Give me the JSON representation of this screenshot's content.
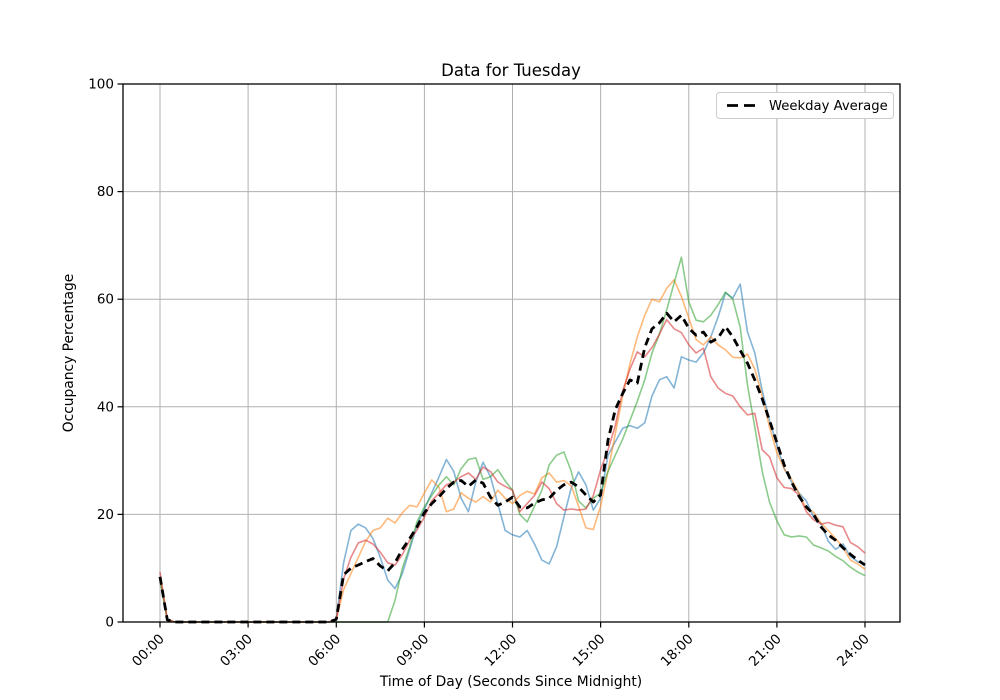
{
  "chart_data": {
    "type": "line",
    "title": "Data for Tuesday",
    "xlabel": "Time of Day (Seconds Since Midnight)",
    "ylabel": "Occupancy Percentage",
    "x_range_seconds": [
      0,
      86400
    ],
    "y_range": [
      0,
      100
    ],
    "grid": "on",
    "grid_color": "#b0b0b0",
    "background_color": "#ffffff",
    "x_tick_seconds": [
      0,
      10800,
      21600,
      32400,
      43200,
      54000,
      64800,
      75600,
      86400
    ],
    "x_tick_labels": [
      "00:00",
      "03:00",
      "06:00",
      "09:00",
      "12:00",
      "15:00",
      "18:00",
      "21:00",
      "24:00"
    ],
    "y_ticks": [
      0,
      20,
      40,
      60,
      80,
      100
    ],
    "x_start_seconds": 0,
    "x_step_seconds": 900,
    "legend": {
      "label": "Weekday Average",
      "position": "upper right"
    },
    "series": [
      {
        "name": "tuesday-sample-blue",
        "color": "#1f77b4",
        "opacity": 0.55,
        "width": 1.6,
        "dash": "",
        "values": [
          8.0,
          0.4,
          0,
          0,
          0,
          0,
          0,
          0,
          0,
          0,
          0,
          0,
          0,
          0,
          0,
          0,
          0,
          0,
          0,
          0,
          0,
          0,
          0,
          0,
          0.5,
          11,
          17,
          18.2,
          17.5,
          15.5,
          12,
          7.8,
          6.2,
          9,
          13.5,
          18,
          21,
          24,
          27,
          30.2,
          28,
          23,
          20.5,
          26,
          29.7,
          27,
          22,
          17,
          16.2,
          15.8,
          17,
          14.5,
          11.5,
          10.8,
          14,
          19.5,
          25,
          27.9,
          25.5,
          20.8,
          23,
          31,
          33.5,
          36,
          36.5,
          36,
          37,
          42,
          45,
          45.6,
          43.5,
          49.3,
          48.7,
          48.3,
          50,
          53,
          56.7,
          61.2,
          60.2,
          62.8,
          53.9,
          50,
          43,
          37.5,
          33,
          28.5,
          26,
          24,
          22.5,
          19.5,
          18.3,
          15,
          13.5,
          14.5,
          12.2,
          11.2,
          10.8
        ]
      },
      {
        "name": "tuesday-sample-orange",
        "color": "#ff7f0e",
        "opacity": 0.55,
        "width": 1.6,
        "dash": "",
        "values": [
          8.2,
          0.4,
          0,
          0,
          0,
          0,
          0,
          0,
          0,
          0,
          0,
          0,
          0,
          0,
          0,
          0,
          0,
          0,
          0,
          0,
          0,
          0,
          0,
          0,
          0.5,
          6,
          9,
          12,
          15,
          17,
          17.5,
          19.3,
          18.4,
          20.3,
          21.7,
          21.4,
          24,
          26.4,
          25,
          20.5,
          21,
          24,
          23,
          22.3,
          23.3,
          22.3,
          24.5,
          23,
          22,
          23.5,
          24.3,
          23.8,
          26.8,
          27.7,
          26,
          26.3,
          25.3,
          21.5,
          17.5,
          17.2,
          21.5,
          28,
          35,
          42,
          48,
          53,
          57,
          60,
          59.5,
          62,
          63.6,
          60.5,
          56.5,
          52.5,
          51.5,
          53,
          51.5,
          50.6,
          49.2,
          49.1,
          49.8,
          47,
          42,
          36.2,
          31.5,
          28.5,
          26.5,
          24,
          21,
          20.4,
          18.4,
          17,
          15.5,
          13.9,
          11.5,
          10.8,
          9.8
        ]
      },
      {
        "name": "tuesday-sample-green",
        "color": "#2ca02c",
        "opacity": 0.55,
        "width": 1.6,
        "dash": "",
        "values": [
          8.0,
          0.3,
          0,
          0,
          0,
          0,
          0,
          0,
          0,
          0,
          0,
          0,
          0,
          0,
          0,
          0,
          0,
          0,
          0,
          0,
          0,
          0,
          0,
          0,
          0,
          0,
          0,
          0,
          0,
          0,
          0,
          0,
          4,
          10,
          14,
          18.6,
          21.4,
          23.5,
          25.5,
          27,
          25.5,
          28.5,
          30.2,
          30.5,
          26.5,
          27,
          28.3,
          26.2,
          24.5,
          20,
          18.6,
          21.5,
          24.5,
          29.2,
          31,
          31.6,
          28,
          22.5,
          21.2,
          23,
          24,
          28,
          31,
          34,
          37.5,
          41,
          45,
          50,
          53.5,
          58,
          63,
          67.8,
          59.5,
          56.1,
          55.8,
          57,
          59,
          61.3,
          60,
          54.8,
          44,
          36.2,
          28,
          22.3,
          18.8,
          16.2,
          15.8,
          16,
          15.8,
          14.3,
          13.8,
          13.2,
          12.2,
          11.4,
          10.2,
          9.3,
          8.6
        ]
      },
      {
        "name": "tuesday-sample-red",
        "color": "#d62728",
        "opacity": 0.55,
        "width": 1.6,
        "dash": "",
        "values": [
          9.3,
          0.5,
          0,
          0,
          0,
          0,
          0,
          0,
          0,
          0,
          0,
          0,
          0,
          0,
          0,
          0,
          0,
          0,
          0,
          0,
          0,
          0,
          0,
          0,
          0.5,
          8,
          12,
          14.7,
          15.2,
          14.5,
          13,
          11,
          10.6,
          12.5,
          15.2,
          17.1,
          19.5,
          22.5,
          24,
          25.5,
          26,
          27,
          27.7,
          26.5,
          28.8,
          28,
          26,
          25.2,
          24.5,
          20.5,
          22,
          23.5,
          26,
          24.8,
          22,
          20.8,
          21,
          20.8,
          21,
          23.5,
          28.3,
          32,
          36.5,
          43,
          47,
          50.2,
          49.3,
          51,
          53.5,
          56.2,
          54.5,
          53.8,
          51.5,
          50,
          50.9,
          45.6,
          43.5,
          42.5,
          42,
          40,
          38.5,
          38.8,
          32,
          30.7,
          26.8,
          25,
          24.8,
          23.6,
          20.5,
          19,
          18.2,
          18.5,
          18,
          17.7,
          14.8,
          14,
          12.8
        ]
      },
      {
        "name": "weekday-average",
        "color": "#000000",
        "opacity": 1,
        "width": 2.8,
        "dash": "8 5",
        "values": [
          8.4,
          0.4,
          0,
          0,
          0,
          0,
          0,
          0,
          0,
          0,
          0,
          0,
          0,
          0,
          0,
          0,
          0,
          0,
          0,
          0,
          0,
          0,
          0,
          0,
          0.5,
          8.8,
          10,
          10.6,
          11.2,
          11.8,
          10.4,
          9.5,
          11,
          13.5,
          15.5,
          17.7,
          20.3,
          22,
          23.3,
          24.8,
          26,
          26.3,
          25.2,
          26.4,
          25.8,
          23.2,
          21.7,
          22.3,
          23.2,
          21.4,
          21.2,
          22.1,
          22.7,
          23,
          24.5,
          25.5,
          26,
          25.1,
          23.6,
          22.3,
          23.6,
          33.8,
          39.5,
          42.5,
          45,
          44.4,
          51,
          54.5,
          55.6,
          57.4,
          55.8,
          57,
          54.6,
          53.3,
          53.9,
          52,
          52.8,
          54.9,
          53,
          50.5,
          48.1,
          45,
          41.5,
          37.5,
          33.3,
          29.2,
          26,
          23.4,
          21.4,
          20,
          17.7,
          16.2,
          15.2,
          13.8,
          12.6,
          11.5,
          10.6
        ]
      }
    ]
  }
}
